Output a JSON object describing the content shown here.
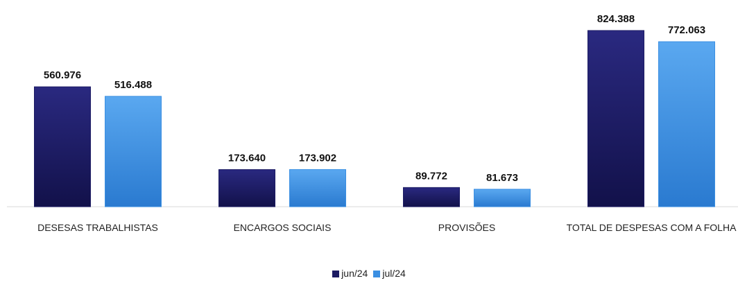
{
  "chart_data": {
    "type": "bar",
    "categories": [
      "DESESAS TRABALHISTAS",
      "ENCARGOS SOCIAIS",
      "PROVISÕES",
      "TOTAL DE DESPESAS COM A FOLHA"
    ],
    "series": [
      {
        "name": "jun/24",
        "color": "#1c1b63",
        "values": [
          560976,
          173640,
          89772,
          824388
        ],
        "value_labels": [
          "560.976",
          "173.640",
          "89.772",
          "824.388"
        ]
      },
      {
        "name": "jul/24",
        "color": "#3b8fe2",
        "values": [
          516488,
          173902,
          81673,
          772063
        ],
        "value_labels": [
          "516.488",
          "173.902",
          "81.673",
          "772.063"
        ]
      }
    ],
    "legend": "bottom"
  }
}
